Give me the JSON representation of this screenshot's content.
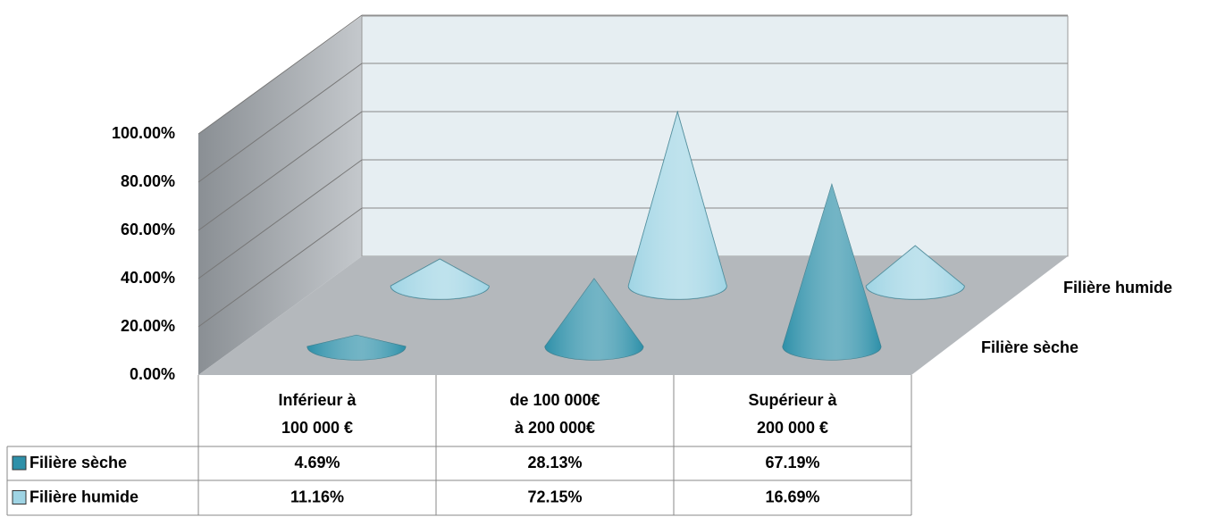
{
  "chart_data": {
    "type": "cone",
    "categories": [
      [
        "Inférieur à",
        "100 000 €"
      ],
      [
        "de 100 000€",
        "à 200 000€"
      ],
      [
        "Supérieur à",
        "200 000 €"
      ]
    ],
    "series": [
      {
        "name": "Filière sèche",
        "color": "#2e90a9",
        "values": [
          4.69,
          28.13,
          67.19
        ],
        "value_labels": [
          "4.69%",
          "28.13%",
          "67.19%"
        ]
      },
      {
        "name": "Filière humide",
        "color": "#9fd4e4",
        "values": [
          11.16,
          72.15,
          16.69
        ],
        "value_labels": [
          "11.16%",
          "72.15%",
          "16.69%"
        ]
      }
    ],
    "ylim": [
      0,
      100
    ],
    "yticks": [
      {
        "value": 0,
        "label": "0.00%"
      },
      {
        "value": 20,
        "label": "20.00%"
      },
      {
        "value": 40,
        "label": "40.00%"
      },
      {
        "value": 60,
        "label": "60.00%"
      },
      {
        "value": 80,
        "label": "80.00%"
      },
      {
        "value": 100,
        "label": "100.00%"
      }
    ],
    "grid": true
  }
}
